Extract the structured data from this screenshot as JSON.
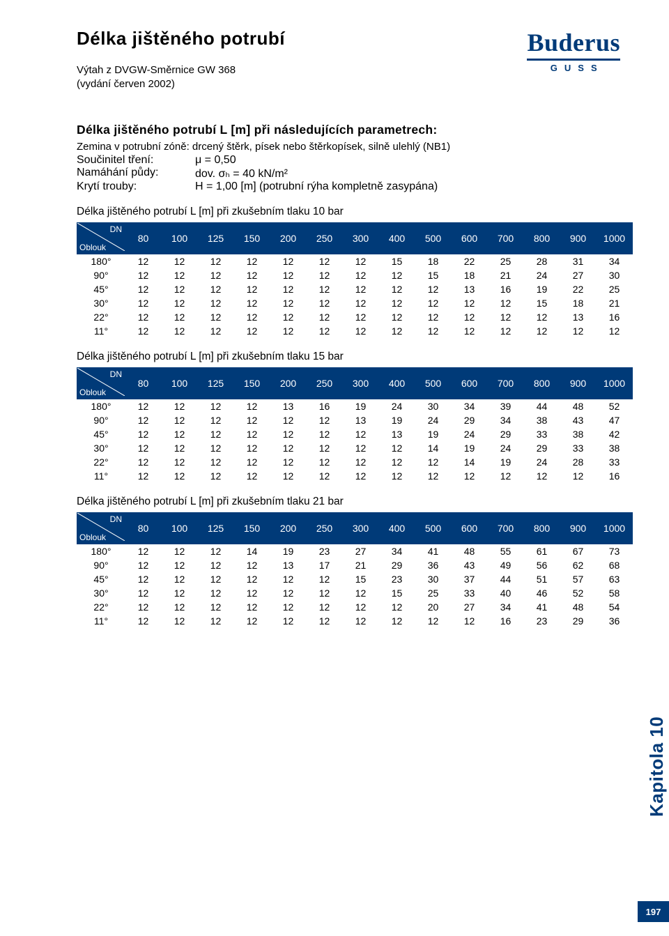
{
  "colors": {
    "brand_blue": "#003a78",
    "white": "#ffffff",
    "black": "#000000"
  },
  "logo": {
    "word": "Buderus",
    "sub": "GUSS"
  },
  "title": "Délka jištěného potrubí",
  "subtitle_line1": "Výtah z DVGW-Směrnice GW 368",
  "subtitle_line2": "(vydání červen 2002)",
  "params_heading": "Délka jištěného potrubí L [m] při následujících parametrech:",
  "params_soil": "Zemina v potrubní zóně: drcený štěrk, písek nebo štěrkopísek, silně ulehlý (NB1)",
  "params_rows": [
    {
      "k": "Součinitel tření:",
      "v": "μ = 0,50"
    },
    {
      "k": "Namáhání půdy:",
      "v": "dov. σₕ = 40 kN/m²"
    },
    {
      "k": "Krytí trouby:",
      "v": "H = 1,00 [m] (potrubní rýha kompletně zasypána)"
    }
  ],
  "corner": {
    "dn": "DN",
    "oblouk": "Oblouk"
  },
  "dn_columns": [
    "80",
    "100",
    "125",
    "150",
    "200",
    "250",
    "300",
    "400",
    "500",
    "600",
    "700",
    "800",
    "900",
    "1000"
  ],
  "tables": [
    {
      "caption": "Délka jištěného potrubí L [m] při zkušebním tlaku 10 bar",
      "rows": [
        {
          "label": "180°",
          "v": [
            "12",
            "12",
            "12",
            "12",
            "12",
            "12",
            "12",
            "15",
            "18",
            "22",
            "25",
            "28",
            "31",
            "34"
          ]
        },
        {
          "label": "90°",
          "v": [
            "12",
            "12",
            "12",
            "12",
            "12",
            "12",
            "12",
            "12",
            "15",
            "18",
            "21",
            "24",
            "27",
            "30"
          ]
        },
        {
          "label": "45°",
          "v": [
            "12",
            "12",
            "12",
            "12",
            "12",
            "12",
            "12",
            "12",
            "12",
            "13",
            "16",
            "19",
            "22",
            "25"
          ]
        },
        {
          "label": "30°",
          "v": [
            "12",
            "12",
            "12",
            "12",
            "12",
            "12",
            "12",
            "12",
            "12",
            "12",
            "12",
            "15",
            "18",
            "21"
          ]
        },
        {
          "label": "22°",
          "v": [
            "12",
            "12",
            "12",
            "12",
            "12",
            "12",
            "12",
            "12",
            "12",
            "12",
            "12",
            "12",
            "13",
            "16"
          ]
        },
        {
          "label": "11°",
          "v": [
            "12",
            "12",
            "12",
            "12",
            "12",
            "12",
            "12",
            "12",
            "12",
            "12",
            "12",
            "12",
            "12",
            "12"
          ]
        }
      ]
    },
    {
      "caption": "Délka jištěného potrubí L [m] při zkušebním tlaku 15 bar",
      "rows": [
        {
          "label": "180°",
          "v": [
            "12",
            "12",
            "12",
            "12",
            "13",
            "16",
            "19",
            "24",
            "30",
            "34",
            "39",
            "44",
            "48",
            "52"
          ]
        },
        {
          "label": "90°",
          "v": [
            "12",
            "12",
            "12",
            "12",
            "12",
            "12",
            "13",
            "19",
            "24",
            "29",
            "34",
            "38",
            "43",
            "47"
          ]
        },
        {
          "label": "45°",
          "v": [
            "12",
            "12",
            "12",
            "12",
            "12",
            "12",
            "12",
            "13",
            "19",
            "24",
            "29",
            "33",
            "38",
            "42"
          ]
        },
        {
          "label": "30°",
          "v": [
            "12",
            "12",
            "12",
            "12",
            "12",
            "12",
            "12",
            "12",
            "14",
            "19",
            "24",
            "29",
            "33",
            "38"
          ]
        },
        {
          "label": "22°",
          "v": [
            "12",
            "12",
            "12",
            "12",
            "12",
            "12",
            "12",
            "12",
            "12",
            "14",
            "19",
            "24",
            "28",
            "33"
          ]
        },
        {
          "label": "11°",
          "v": [
            "12",
            "12",
            "12",
            "12",
            "12",
            "12",
            "12",
            "12",
            "12",
            "12",
            "12",
            "12",
            "12",
            "16"
          ]
        }
      ]
    },
    {
      "caption": "Délka jištěného potrubí L [m] při zkušebním tlaku 21 bar",
      "rows": [
        {
          "label": "180°",
          "v": [
            "12",
            "12",
            "12",
            "14",
            "19",
            "23",
            "27",
            "34",
            "41",
            "48",
            "55",
            "61",
            "67",
            "73"
          ]
        },
        {
          "label": "90°",
          "v": [
            "12",
            "12",
            "12",
            "12",
            "13",
            "17",
            "21",
            "29",
            "36",
            "43",
            "49",
            "56",
            "62",
            "68"
          ]
        },
        {
          "label": "45°",
          "v": [
            "12",
            "12",
            "12",
            "12",
            "12",
            "12",
            "15",
            "23",
            "30",
            "37",
            "44",
            "51",
            "57",
            "63"
          ]
        },
        {
          "label": "30°",
          "v": [
            "12",
            "12",
            "12",
            "12",
            "12",
            "12",
            "12",
            "15",
            "25",
            "33",
            "40",
            "46",
            "52",
            "58"
          ]
        },
        {
          "label": "22°",
          "v": [
            "12",
            "12",
            "12",
            "12",
            "12",
            "12",
            "12",
            "12",
            "20",
            "27",
            "34",
            "41",
            "48",
            "54"
          ]
        },
        {
          "label": "11°",
          "v": [
            "12",
            "12",
            "12",
            "12",
            "12",
            "12",
            "12",
            "12",
            "12",
            "12",
            "16",
            "23",
            "29",
            "36"
          ]
        }
      ]
    }
  ],
  "side_tab": "Kapitola 10",
  "page_number": "197"
}
